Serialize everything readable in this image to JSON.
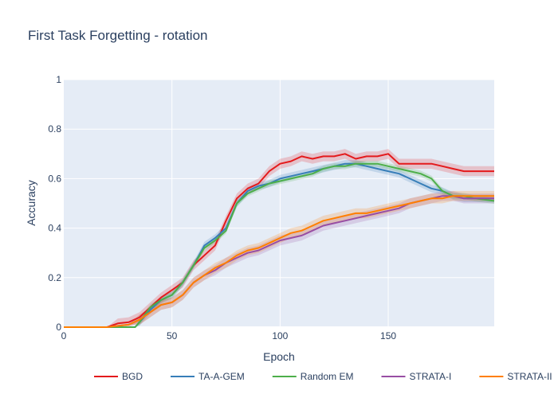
{
  "chart_data": {
    "type": "line",
    "title": "First Task Forgetting - rotation",
    "xlabel": "Epoch",
    "ylabel": "Accuracy",
    "xlim": [
      0,
      199
    ],
    "ylim": [
      0,
      1
    ],
    "x_ticks": [
      0,
      50,
      100,
      150
    ],
    "y_ticks": [
      0,
      0.2,
      0.4,
      0.6,
      0.8,
      1
    ],
    "y_tick_labels": [
      "0",
      "0.2",
      "0.4",
      "0.6",
      "0.8",
      "1"
    ],
    "grid": true,
    "legend_position": "bottom",
    "plot_background": "#e5ecf6",
    "series": [
      {
        "name": "BGD",
        "color": "#e41a1c",
        "band": 0.02,
        "x": [
          0,
          10,
          20,
          25,
          30,
          35,
          40,
          45,
          50,
          55,
          60,
          65,
          70,
          75,
          80,
          85,
          90,
          95,
          100,
          105,
          110,
          115,
          120,
          125,
          130,
          135,
          140,
          145,
          150,
          155,
          160,
          165,
          170,
          175,
          180,
          185,
          190,
          199
        ],
        "y": [
          0,
          0,
          0,
          0.015,
          0.02,
          0.04,
          0.08,
          0.12,
          0.15,
          0.18,
          0.25,
          0.29,
          0.33,
          0.43,
          0.52,
          0.56,
          0.58,
          0.63,
          0.66,
          0.67,
          0.69,
          0.68,
          0.69,
          0.69,
          0.7,
          0.68,
          0.69,
          0.69,
          0.7,
          0.66,
          0.66,
          0.66,
          0.66,
          0.65,
          0.64,
          0.63,
          0.63,
          0.63
        ]
      },
      {
        "name": "TA-A-GEM",
        "color": "#377eb8",
        "band": 0.015,
        "x": [
          0,
          10,
          20,
          25,
          30,
          33,
          35,
          40,
          45,
          50,
          55,
          60,
          65,
          70,
          75,
          80,
          85,
          90,
          95,
          100,
          105,
          110,
          115,
          120,
          125,
          130,
          135,
          140,
          145,
          150,
          155,
          160,
          165,
          170,
          175,
          180,
          185,
          190,
          199
        ],
        "y": [
          0,
          0,
          0,
          0,
          0,
          0,
          0.02,
          0.07,
          0.11,
          0.13,
          0.18,
          0.25,
          0.33,
          0.36,
          0.4,
          0.5,
          0.55,
          0.57,
          0.58,
          0.6,
          0.61,
          0.62,
          0.63,
          0.64,
          0.65,
          0.66,
          0.66,
          0.65,
          0.64,
          0.63,
          0.62,
          0.6,
          0.58,
          0.56,
          0.55,
          0.53,
          0.52,
          0.52,
          0.52
        ]
      },
      {
        "name": "Random EM",
        "color": "#4daf4a",
        "band": 0.012,
        "x": [
          0,
          10,
          20,
          25,
          30,
          33,
          35,
          40,
          45,
          50,
          55,
          60,
          65,
          70,
          75,
          80,
          85,
          90,
          95,
          100,
          105,
          110,
          115,
          120,
          125,
          130,
          135,
          140,
          145,
          150,
          155,
          160,
          165,
          170,
          175,
          180,
          185,
          190,
          199
        ],
        "y": [
          0,
          0,
          0,
          0,
          0,
          0,
          0.02,
          0.08,
          0.11,
          0.13,
          0.18,
          0.25,
          0.32,
          0.35,
          0.39,
          0.5,
          0.54,
          0.56,
          0.58,
          0.59,
          0.6,
          0.61,
          0.62,
          0.64,
          0.65,
          0.65,
          0.66,
          0.66,
          0.66,
          0.65,
          0.64,
          0.63,
          0.62,
          0.6,
          0.55,
          0.53,
          0.53,
          0.52,
          0.51
        ]
      },
      {
        "name": "STRATA-I",
        "color": "#984ea3",
        "band": 0.02,
        "x": [
          0,
          10,
          20,
          25,
          30,
          35,
          40,
          45,
          50,
          55,
          60,
          65,
          70,
          75,
          80,
          85,
          90,
          95,
          100,
          105,
          110,
          115,
          120,
          125,
          130,
          135,
          140,
          145,
          150,
          155,
          160,
          165,
          170,
          175,
          180,
          185,
          190,
          199
        ],
        "y": [
          0,
          0,
          0,
          0.005,
          0.01,
          0.03,
          0.06,
          0.09,
          0.1,
          0.13,
          0.18,
          0.21,
          0.23,
          0.26,
          0.28,
          0.3,
          0.31,
          0.33,
          0.35,
          0.36,
          0.37,
          0.39,
          0.41,
          0.42,
          0.43,
          0.44,
          0.45,
          0.46,
          0.47,
          0.48,
          0.5,
          0.51,
          0.52,
          0.53,
          0.53,
          0.52,
          0.52,
          0.52
        ]
      },
      {
        "name": "STRATA-II",
        "color": "#ff7f00",
        "band": 0.02,
        "x": [
          0,
          10,
          20,
          25,
          30,
          35,
          40,
          45,
          50,
          55,
          60,
          65,
          70,
          75,
          80,
          85,
          90,
          95,
          100,
          105,
          110,
          115,
          120,
          125,
          130,
          135,
          140,
          145,
          150,
          155,
          160,
          165,
          170,
          175,
          180,
          185,
          190,
          199
        ],
        "y": [
          0,
          0,
          0,
          0.005,
          0.01,
          0.03,
          0.06,
          0.09,
          0.1,
          0.13,
          0.18,
          0.21,
          0.24,
          0.26,
          0.29,
          0.31,
          0.32,
          0.34,
          0.36,
          0.38,
          0.39,
          0.41,
          0.43,
          0.44,
          0.45,
          0.46,
          0.46,
          0.47,
          0.48,
          0.49,
          0.5,
          0.51,
          0.52,
          0.52,
          0.53,
          0.53,
          0.53,
          0.53
        ]
      }
    ]
  }
}
